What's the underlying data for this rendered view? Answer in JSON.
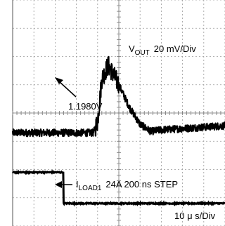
{
  "chart_data": {
    "type": "line",
    "title": "",
    "grid": true,
    "grid_divisions": {
      "x": 10,
      "y": 8
    },
    "annotations": {
      "vout_channel": "V",
      "vout_sub": "OUT",
      "vout_scale": "20 mV/Div",
      "vout_level": "1.1980V",
      "iload_channel": "I",
      "iload_sub": "LOAD1",
      "iload_step": "24A  200 ns  STEP",
      "time_scale": "10 μ s/Div"
    },
    "series": [
      {
        "x_div": [
          0,
          1,
          2,
          3,
          3.8,
          4.0,
          4.2,
          4.5,
          5.0,
          5.5,
          6.0,
          6.5,
          7.0,
          8.0,
          9.0,
          10.0
        ],
        "y_div": [
          -0.7,
          -0.7,
          -0.7,
          -0.7,
          -0.7,
          -0.3,
          1.2,
          1.7,
          1.0,
          0.2,
          -0.4,
          -0.65,
          -0.6,
          -0.55,
          -0.5,
          -0.45
        ]
      },
      {
        "x_div": [
          0,
          2.4,
          2.4,
          10
        ],
        "y_div": [
          -2.1,
          -2.1,
          -3.2,
          -3.2
        ]
      }
    ]
  }
}
